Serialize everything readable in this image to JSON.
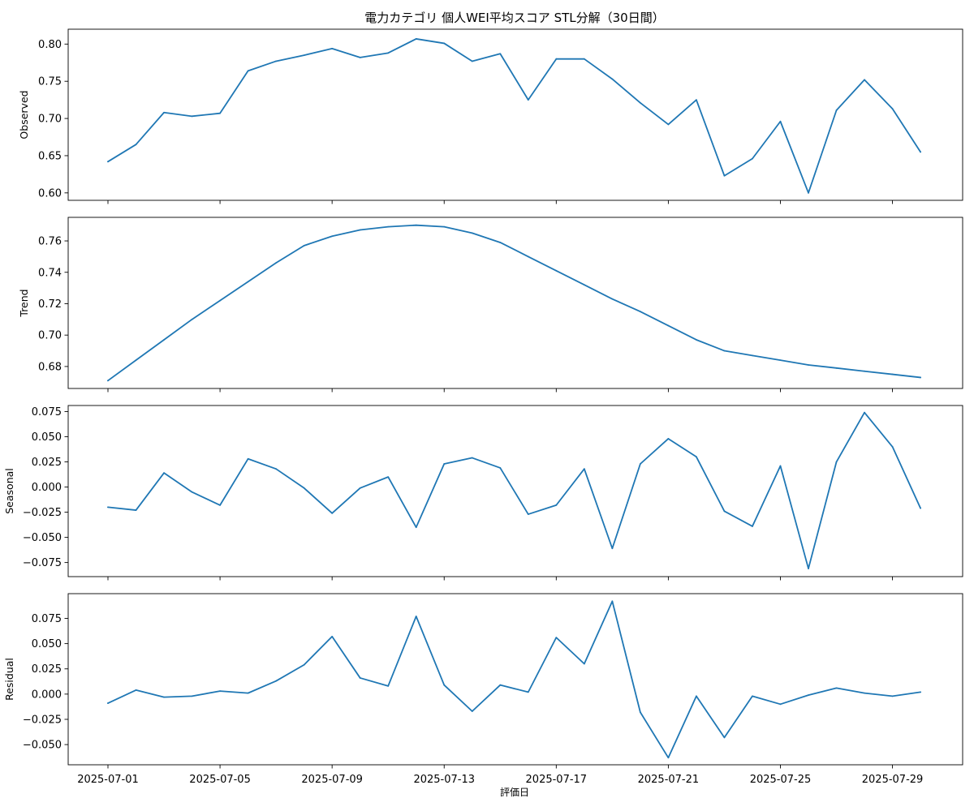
{
  "figure": {
    "title": "電力カテゴリ 個人WEI平均スコア STL分解（30日間）",
    "xlabel": "評価日"
  },
  "chart_data": [
    {
      "type": "line",
      "ylabel": "Observed",
      "color": "#1f77b4",
      "ylim": [
        0.59,
        0.82
      ],
      "yticks": [
        0.6,
        0.65,
        0.7,
        0.75,
        0.8
      ],
      "ytick_labels": [
        "0.60",
        "0.65",
        "0.70",
        "0.75",
        "0.80"
      ],
      "grid": false,
      "values": [
        0.642,
        0.665,
        0.708,
        0.703,
        0.707,
        0.764,
        0.777,
        0.785,
        0.794,
        0.782,
        0.788,
        0.807,
        0.801,
        0.777,
        0.787,
        0.725,
        0.78,
        0.78,
        0.753,
        0.721,
        0.692,
        0.725,
        0.623,
        0.646,
        0.696,
        0.6,
        0.711,
        0.752,
        0.713,
        0.655
      ]
    },
    {
      "type": "line",
      "ylabel": "Trend",
      "color": "#1f77b4",
      "ylim": [
        0.666,
        0.775
      ],
      "yticks": [
        0.68,
        0.7,
        0.72,
        0.74,
        0.76
      ],
      "ytick_labels": [
        "0.68",
        "0.70",
        "0.72",
        "0.74",
        "0.76"
      ],
      "grid": false,
      "values": [
        0.671,
        0.684,
        0.697,
        0.71,
        0.722,
        0.734,
        0.746,
        0.757,
        0.763,
        0.767,
        0.769,
        0.77,
        0.769,
        0.765,
        0.759,
        0.75,
        0.741,
        0.732,
        0.723,
        0.715,
        0.706,
        0.697,
        0.69,
        0.687,
        0.684,
        0.681,
        0.679,
        0.677,
        0.675,
        0.673
      ]
    },
    {
      "type": "line",
      "ylabel": "Seasonal",
      "color": "#1f77b4",
      "ylim": [
        -0.089,
        0.081
      ],
      "yticks": [
        -0.075,
        -0.05,
        -0.025,
        0.0,
        0.025,
        0.05,
        0.075
      ],
      "ytick_labels": [
        "−0.075",
        "−0.050",
        "−0.025",
        "0.000",
        "0.025",
        "0.050",
        "0.075"
      ],
      "grid": false,
      "values": [
        -0.02,
        -0.023,
        0.014,
        -0.005,
        -0.018,
        0.028,
        0.018,
        -0.001,
        -0.026,
        -0.001,
        0.01,
        -0.04,
        0.023,
        0.029,
        0.019,
        -0.027,
        -0.018,
        0.018,
        -0.061,
        0.023,
        0.048,
        0.03,
        -0.024,
        -0.039,
        0.021,
        -0.081,
        0.025,
        0.074,
        0.04,
        -0.021
      ]
    },
    {
      "type": "line",
      "ylabel": "Residual",
      "color": "#1f77b4",
      "ylim": [
        -0.07,
        0.0995
      ],
      "yticks": [
        -0.05,
        -0.025,
        0.0,
        0.025,
        0.05,
        0.075
      ],
      "ytick_labels": [
        "−0.050",
        "−0.025",
        "0.000",
        "0.025",
        "0.050",
        "0.075"
      ],
      "grid": false,
      "values": [
        -0.009,
        0.004,
        -0.003,
        -0.002,
        0.003,
        0.001,
        0.013,
        0.029,
        0.057,
        0.016,
        0.008,
        0.077,
        0.009,
        -0.017,
        0.009,
        0.002,
        0.056,
        0.03,
        0.092,
        -0.018,
        -0.063,
        -0.002,
        -0.043,
        -0.002,
        -0.01,
        -0.001,
        0.006,
        0.001,
        -0.002,
        0.002
      ]
    }
  ],
  "x_axis": {
    "start_date": "2025-07-01",
    "count": 30,
    "ticks": [
      {
        "index": 0,
        "label": "2025-07-01"
      },
      {
        "index": 4,
        "label": "2025-07-05"
      },
      {
        "index": 8,
        "label": "2025-07-09"
      },
      {
        "index": 12,
        "label": "2025-07-13"
      },
      {
        "index": 16,
        "label": "2025-07-17"
      },
      {
        "index": 20,
        "label": "2025-07-21"
      },
      {
        "index": 24,
        "label": "2025-07-25"
      },
      {
        "index": 28,
        "label": "2025-07-29"
      }
    ]
  }
}
